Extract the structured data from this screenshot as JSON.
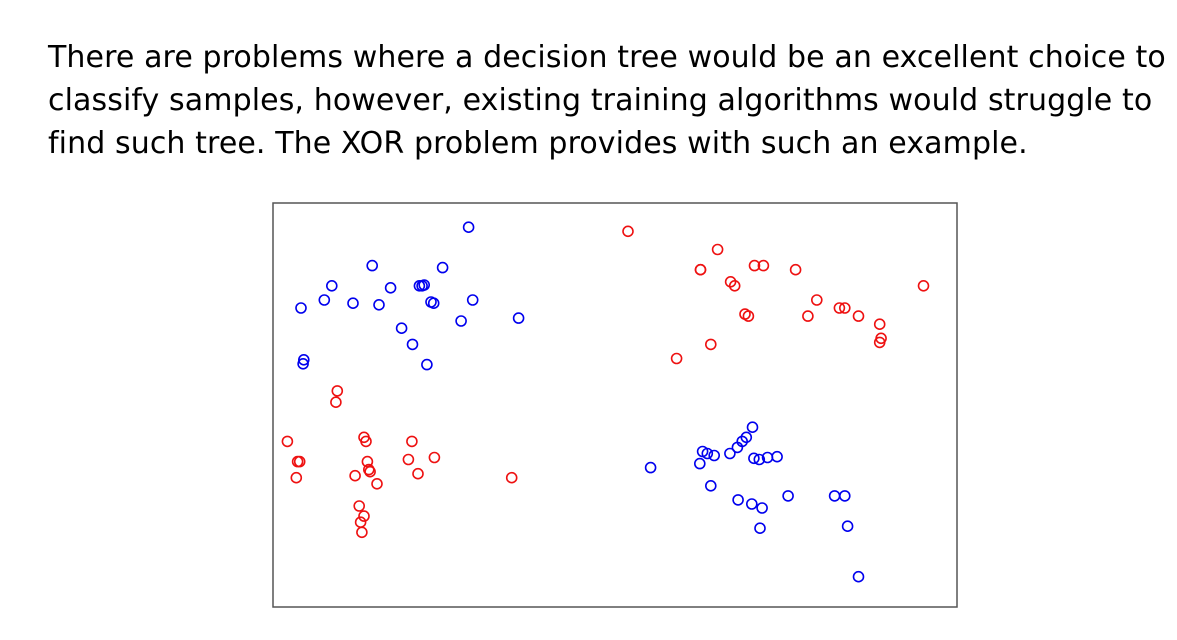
{
  "paragraph": {
    "lines": [
      "There are problems where a decision tree would be an excellent choice to",
      "classify samples, however, existing training algorithms would struggle to",
      "find such tree. The XOR problem provides with such an example."
    ]
  },
  "colors": {
    "class_a": "#0000ee",
    "class_b": "#ee1111",
    "frame": "#555555"
  },
  "chart_data": {
    "type": "scatter",
    "title": "",
    "xlabel": "",
    "ylabel": "",
    "xlim": [
      0,
      1
    ],
    "ylim": [
      0,
      1
    ],
    "grid": false,
    "legend": "none",
    "marker": "open-circle",
    "series": [
      {
        "color": "#0000ee",
        "x": [
          0.286,
          0.041,
          0.075,
          0.086,
          0.117,
          0.145,
          0.155,
          0.172,
          0.188,
          0.204,
          0.214,
          0.221,
          0.225,
          0.235,
          0.231,
          0.248,
          0.292,
          0.359,
          0.045,
          0.044,
          0.275,
          0.218,
          0.552,
          0.624,
          0.635,
          0.628,
          0.645,
          0.668,
          0.679,
          0.686,
          0.692,
          0.701,
          0.711,
          0.703,
          0.723,
          0.737,
          0.753,
          0.64,
          0.68,
          0.7,
          0.715,
          0.712,
          0.821,
          0.836,
          0.84,
          0.856
        ],
        "y": [
          0.94,
          0.74,
          0.76,
          0.795,
          0.752,
          0.845,
          0.748,
          0.79,
          0.69,
          0.65,
          0.795,
          0.797,
          0.6,
          0.752,
          0.755,
          0.84,
          0.76,
          0.715,
          0.612,
          0.602,
          0.708,
          0.795,
          0.345,
          0.355,
          0.38,
          0.385,
          0.375,
          0.38,
          0.395,
          0.41,
          0.42,
          0.445,
          0.365,
          0.368,
          0.37,
          0.372,
          0.275,
          0.3,
          0.265,
          0.255,
          0.245,
          0.195,
          0.275,
          0.275,
          0.2,
          0.075
        ]
      },
      {
        "color": "#ee1111",
        "x": [
          0.519,
          0.021,
          0.036,
          0.039,
          0.034,
          0.094,
          0.092,
          0.133,
          0.136,
          0.138,
          0.14,
          0.142,
          0.152,
          0.12,
          0.126,
          0.133,
          0.128,
          0.13,
          0.203,
          0.198,
          0.212,
          0.236,
          0.349,
          0.64,
          0.59,
          0.625,
          0.625,
          0.65,
          0.669,
          0.675,
          0.69,
          0.695,
          0.704,
          0.717,
          0.764,
          0.795,
          0.782,
          0.828,
          0.836,
          0.856,
          0.887,
          0.889,
          0.887,
          0.951
        ],
        "y": [
          0.93,
          0.41,
          0.36,
          0.36,
          0.32,
          0.535,
          0.507,
          0.42,
          0.41,
          0.36,
          0.34,
          0.335,
          0.305,
          0.325,
          0.25,
          0.225,
          0.21,
          0.185,
          0.41,
          0.365,
          0.33,
          0.37,
          0.32,
          0.65,
          0.615,
          0.835,
          0.835,
          0.885,
          0.805,
          0.795,
          0.725,
          0.72,
          0.845,
          0.845,
          0.835,
          0.76,
          0.72,
          0.74,
          0.74,
          0.72,
          0.7,
          0.665,
          0.655,
          0.795
        ]
      }
    ]
  }
}
